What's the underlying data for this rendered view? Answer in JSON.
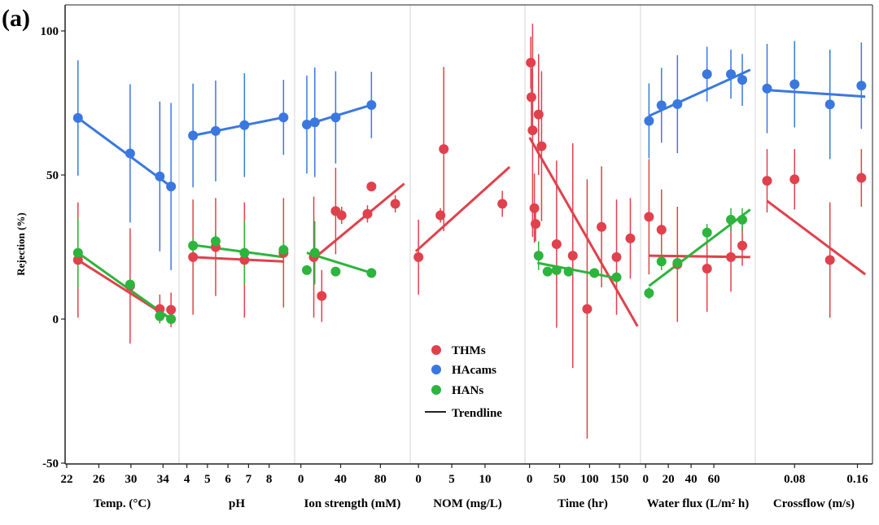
{
  "chart_data": {
    "type": "scatter",
    "panel_label": "(a)",
    "ylabel": "Rejection (%)",
    "ylim": [
      -50,
      110
    ],
    "yticks": [
      "100",
      "50",
      "0",
      "-50"
    ],
    "ytick_values": [
      100,
      50,
      0,
      -50
    ],
    "colors": {
      "THMs": "#e0414c",
      "HAcams": "#3a78e0",
      "HANs": "#2db43c",
      "Trendline": "#222222"
    },
    "legend": [
      "THMs",
      "HAcams",
      "HANs",
      "Trendline"
    ],
    "panels": [
      {
        "xlabel": "Temp. (°C)",
        "xlim": [
          22,
          36
        ],
        "xticks": [
          "22",
          "26",
          "30",
          "34"
        ],
        "xtick_values": [
          22,
          26,
          30,
          34
        ],
        "series": [
          {
            "name": "HAcams",
            "points": [
              [
                23.4,
                69.8,
                20
              ],
              [
                29.9,
                57.5,
                24
              ],
              [
                33.6,
                49.5,
                26
              ],
              [
                35.0,
                46.0,
                29
              ]
            ],
            "trend": [
              [
                23.4,
                69.8
              ],
              [
                35.0,
                46.0
              ]
            ]
          },
          {
            "name": "THMs",
            "points": [
              [
                23.4,
                20.5,
                20
              ],
              [
                29.9,
                11.5,
                20
              ],
              [
                33.6,
                3.5,
                5
              ],
              [
                35.0,
                3.2,
                6
              ]
            ],
            "trend": [
              [
                23.4,
                20.5
              ],
              [
                35.0,
                0.0
              ]
            ]
          },
          {
            "name": "HANs",
            "points": [
              [
                23.4,
                23.0,
                12
              ],
              [
                29.9,
                12.0,
                2
              ],
              [
                33.6,
                1.0,
                2
              ],
              [
                35.0,
                0.0,
                1
              ]
            ],
            "trend": [
              [
                23.4,
                23.0
              ],
              [
                35.0,
                0.0
              ]
            ]
          }
        ]
      },
      {
        "xlabel": "pH",
        "xlim": [
          3.7,
          9.2
        ],
        "xticks": [
          "4",
          "5",
          "6",
          "7",
          "8"
        ],
        "xtick_values": [
          4,
          5,
          6,
          7,
          8
        ],
        "series": [
          {
            "name": "HAcams",
            "points": [
              [
                4.3,
                63.7,
                18
              ],
              [
                5.4,
                65.3,
                17.5
              ],
              [
                6.8,
                67.3,
                18
              ],
              [
                8.7,
                70.0,
                13
              ]
            ],
            "trend": [
              [
                4.3,
                63.7
              ],
              [
                8.7,
                70.0
              ]
            ]
          },
          {
            "name": "THMs",
            "points": [
              [
                4.3,
                21.5,
                20
              ],
              [
                5.4,
                25.0,
                17
              ],
              [
                6.8,
                20.5,
                20
              ],
              [
                8.7,
                23.0,
                19
              ]
            ],
            "trend": [
              [
                4.3,
                21.5
              ],
              [
                8.7,
                20.0
              ]
            ]
          },
          {
            "name": "HANs",
            "points": [
              [
                4.3,
                25.5,
                3
              ],
              [
                5.4,
                27.0,
                3
              ],
              [
                6.8,
                23.0,
                11
              ],
              [
                8.7,
                24.0,
                3
              ]
            ],
            "trend": [
              [
                4.3,
                25.7
              ],
              [
                8.7,
                21.5
              ]
            ]
          }
        ]
      },
      {
        "xlabel": "Ion strength (mM)",
        "xlim": [
          -3,
          110
        ],
        "xticks": [
          "0",
          "40",
          "80"
        ],
        "xtick_values": [
          0,
          40,
          80
        ],
        "series": [
          {
            "name": "HAcams",
            "points": [
              [
                6,
                67.5,
                17
              ],
              [
                14,
                68.3,
                19
              ],
              [
                35,
                70.0,
                16
              ],
              [
                71,
                74.3,
                11.5
              ]
            ],
            "trend": [
              [
                6,
                67.5
              ],
              [
                71,
                74.3
              ]
            ]
          },
          {
            "name": "THMs",
            "points": [
              [
                13,
                21.5,
                21
              ],
              [
                21,
                8.0,
                9
              ],
              [
                35,
                37.5,
                15
              ],
              [
                41,
                36.0,
                3
              ],
              [
                67,
                36.5,
                3
              ],
              [
                71,
                46.0,
                1
              ],
              [
                95,
                40.0,
                3
              ]
            ],
            "trend": [
              [
                13,
                21.0
              ],
              [
                104,
                47.0
              ]
            ]
          },
          {
            "name": "HANs",
            "points": [
              [
                6,
                17.0,
                1
              ],
              [
                14,
                23.0,
                11
              ],
              [
                35,
                16.5,
                1
              ],
              [
                71,
                16.0,
                1
              ]
            ],
            "trend": [
              [
                6,
                23.0
              ],
              [
                71,
                16.0
              ]
            ]
          }
        ]
      },
      {
        "xlabel": "NOM (mg/L)",
        "xlim": [
          -1,
          16
        ],
        "xticks": [
          "0",
          "5",
          "10"
        ],
        "xtick_values": [
          0,
          5,
          10
        ],
        "series": [
          {
            "name": "THMs",
            "points": [
              [
                0,
                21.5,
                13
              ],
              [
                3.3,
                36.0,
                2.5
              ],
              [
                3.8,
                59.0,
                28.5
              ],
              [
                12.6,
                40.0,
                4.5
              ]
            ],
            "trend": [
              [
                -0.4,
                23.5
              ],
              [
                13.7,
                52.8
              ]
            ]
          }
        ]
      },
      {
        "xlabel": "Time (hr)",
        "xlim": [
          -5,
          185
        ],
        "xticks": [
          "0",
          "50",
          "100",
          "150"
        ],
        "xtick_values": [
          0,
          50,
          100,
          150
        ],
        "series": [
          {
            "name": "THMs",
            "points": [
              [
                2,
                89,
                9
              ],
              [
                3,
                77,
                10
              ],
              [
                5,
                65.5,
                37
              ],
              [
                8,
                38.5,
                12
              ],
              [
                10,
                33,
                6
              ],
              [
                15,
                71,
                21
              ],
              [
                20,
                60,
                26
              ],
              [
                45,
                26,
                29
              ],
              [
                72,
                22,
                39
              ],
              [
                96,
                3.5,
                45
              ],
              [
                120,
                32,
                21
              ],
              [
                145,
                21.5,
                20
              ],
              [
                168,
                28,
                14
              ]
            ],
            "trend": [
              [
                0,
                63
              ],
              [
                180,
                -2.5
              ]
            ]
          },
          {
            "name": "HANs",
            "points": [
              [
                15,
                22,
                5
              ],
              [
                30,
                16.5,
                1.5
              ],
              [
                45,
                17,
                1.5
              ],
              [
                65,
                16.5,
                1
              ],
              [
                108,
                16,
                1
              ],
              [
                145,
                14.5,
                1
              ]
            ],
            "trend": [
              [
                13,
                19.5
              ],
              [
                150,
                14
              ]
            ]
          }
        ]
      },
      {
        "xlabel": "Water flux (L/m² h)",
        "xlim": [
          -3,
          95
        ],
        "xticks": [
          "0",
          "20",
          "40",
          "60"
        ],
        "xtick_values": [
          0,
          20,
          40,
          60
        ],
        "series": [
          {
            "name": "HAcams",
            "points": [
              [
                3,
                68.8,
                13
              ],
              [
                14,
                74.2,
                13
              ],
              [
                28,
                74.6,
                17
              ],
              [
                54,
                85.0,
                9.5
              ],
              [
                75,
                85.0,
                8.5
              ],
              [
                85,
                83.0,
                9
              ]
            ],
            "trend": [
              [
                3,
                70.5
              ],
              [
                92,
                86.5
              ]
            ]
          },
          {
            "name": "THMs",
            "points": [
              [
                3,
                35.5,
                20
              ],
              [
                14,
                31.0,
                14
              ],
              [
                28,
                19.0,
                20
              ],
              [
                54,
                17.5,
                15
              ],
              [
                75,
                21.5,
                12
              ],
              [
                85,
                25.5,
                7
              ]
            ],
            "trend": [
              [
                3,
                22.0
              ],
              [
                92,
                21.5
              ]
            ]
          },
          {
            "name": "HANs",
            "points": [
              [
                3,
                9.0,
                2
              ],
              [
                14,
                20.0,
                3
              ],
              [
                28,
                19.5,
                3
              ],
              [
                54,
                30.0,
                3
              ],
              [
                75,
                34.5,
                4
              ],
              [
                85,
                34.5,
                4
              ]
            ],
            "trend": [
              [
                3,
                11.5
              ],
              [
                92,
                38.0
              ]
            ]
          }
        ]
      },
      {
        "xlabel": "Crossflow  (m/s)",
        "xlim": [
          0.03,
          0.175
        ],
        "xticks": [
          "0.08",
          "0.16"
        ],
        "xtick_values": [
          0.08,
          0.16
        ],
        "series": [
          {
            "name": "HAcams",
            "points": [
              [
                0.045,
                80.0,
                15.5
              ],
              [
                0.08,
                81.5,
                15
              ],
              [
                0.125,
                74.5,
                19
              ],
              [
                0.165,
                81.0,
                15
              ]
            ],
            "trend": [
              [
                0.045,
                79.5
              ],
              [
                0.17,
                77.2
              ]
            ]
          },
          {
            "name": "THMs",
            "points": [
              [
                0.045,
                48.0,
                11
              ],
              [
                0.08,
                48.5,
                10.5
              ],
              [
                0.125,
                20.5,
                20
              ],
              [
                0.165,
                49.0,
                10
              ]
            ],
            "trend": [
              [
                0.045,
                41.0
              ],
              [
                0.17,
                15.5
              ]
            ]
          }
        ]
      }
    ]
  }
}
